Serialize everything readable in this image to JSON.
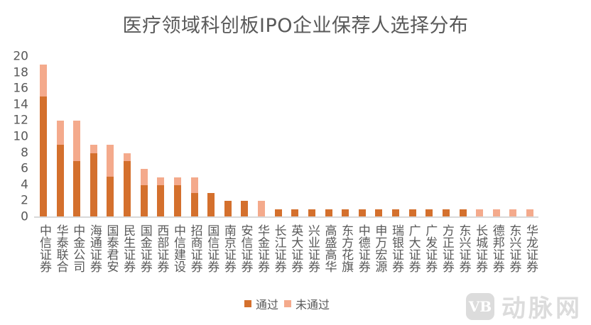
{
  "title": "医疗领域科创板IPO企业保荐人选择分布",
  "legend": {
    "pass_label": "通过",
    "fail_label": "未通过"
  },
  "colors": {
    "pass": "#d4702d",
    "fail": "#f4aa8c",
    "axis": "#d9d9d9",
    "text": "#595959"
  },
  "yaxis": {
    "ticks": [
      "0",
      "2",
      "4",
      "6",
      "8",
      "10",
      "12",
      "14",
      "16",
      "18",
      "20"
    ]
  },
  "watermark": {
    "logo": "VB",
    "text": "动脉网"
  },
  "chart_data": {
    "type": "bar",
    "stacked": true,
    "title": "医疗领域科创板IPO企业保荐人选择分布",
    "xlabel": "",
    "ylabel": "",
    "ylim": [
      0,
      20
    ],
    "yticks": [
      0,
      2,
      4,
      6,
      8,
      10,
      12,
      14,
      16,
      18,
      20
    ],
    "grid": false,
    "legend_position": "bottom",
    "categories": [
      "中信证券",
      "华泰联合",
      "中金公司",
      "海通证券",
      "国泰君安",
      "民生证券",
      "国金证券",
      "西部证券",
      "中信建设",
      "招商证券",
      "国信证券",
      "南京证券",
      "安信证券",
      "华金证券",
      "长江证券",
      "英大证券",
      "兴业证券",
      "高盛高华",
      "东方花旗",
      "中德证券",
      "申万宏源",
      "瑞银证券",
      "广大证券",
      "广发证券",
      "方正证券",
      "东兴证券",
      "长城证券",
      "德邦证券",
      "东兴证券",
      "华龙证券"
    ],
    "series": [
      {
        "name": "通过",
        "color": "#d4702d",
        "values": [
          15,
          9,
          7,
          8,
          5,
          7,
          4,
          4,
          4,
          3,
          3,
          2,
          2,
          0,
          1,
          1,
          1,
          1,
          1,
          1,
          1,
          1,
          1,
          1,
          1,
          1,
          0,
          0,
          0,
          0
        ]
      },
      {
        "name": "未通过",
        "color": "#f4aa8c",
        "values": [
          4,
          3,
          5,
          1,
          4,
          1,
          2,
          1,
          1,
          2,
          0,
          0,
          0,
          2,
          0,
          0,
          0,
          0,
          0,
          0,
          0,
          0,
          0,
          0,
          0,
          0,
          1,
          1,
          1,
          1
        ]
      }
    ]
  }
}
